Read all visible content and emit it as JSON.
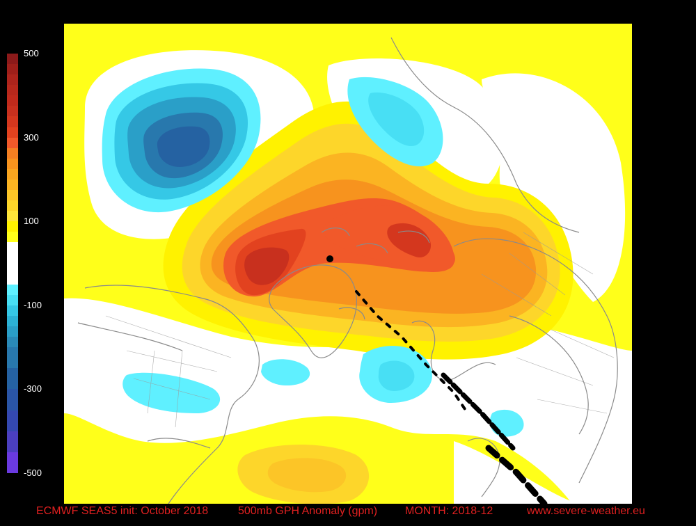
{
  "colors": {
    "background": "#000000",
    "land_outline": "#8a8a8a",
    "neutral": "#ffffff",
    "caption": "#e02020"
  },
  "colorbar": {
    "labels": [
      "500",
      "300",
      "100",
      "-100",
      "-300",
      "-500"
    ],
    "range": [
      -500,
      500
    ],
    "bands": [
      {
        "from": 475,
        "to": 500,
        "color": "#8c1a1a"
      },
      {
        "from": 450,
        "to": 475,
        "color": "#9e1f1a"
      },
      {
        "from": 425,
        "to": 450,
        "color": "#ad241c"
      },
      {
        "from": 400,
        "to": 425,
        "color": "#b7281c"
      },
      {
        "from": 375,
        "to": 400,
        "color": "#c02a1c"
      },
      {
        "from": 350,
        "to": 375,
        "color": "#c8301e"
      },
      {
        "from": 325,
        "to": 350,
        "color": "#d4371e"
      },
      {
        "from": 300,
        "to": 325,
        "color": "#e2421f"
      },
      {
        "from": 275,
        "to": 300,
        "color": "#f1592a"
      },
      {
        "from": 250,
        "to": 275,
        "color": "#f47f22"
      },
      {
        "from": 225,
        "to": 250,
        "color": "#f7931e"
      },
      {
        "from": 200,
        "to": 225,
        "color": "#f9a51f"
      },
      {
        "from": 175,
        "to": 200,
        "color": "#fbb422"
      },
      {
        "from": 150,
        "to": 175,
        "color": "#fcc527"
      },
      {
        "from": 125,
        "to": 150,
        "color": "#fdd62a"
      },
      {
        "from": 100,
        "to": 125,
        "color": "#fee53a"
      },
      {
        "from": 75,
        "to": 100,
        "color": "#fff200"
      },
      {
        "from": 50,
        "to": 75,
        "color": "#ffff1a"
      },
      {
        "from": -50,
        "to": 50,
        "color": "#ffffff"
      },
      {
        "from": -75,
        "to": -50,
        "color": "#5ff0ff"
      },
      {
        "from": -100,
        "to": -75,
        "color": "#48dff4"
      },
      {
        "from": -125,
        "to": -100,
        "color": "#35c8e6"
      },
      {
        "from": -150,
        "to": -125,
        "color": "#2cb2d6"
      },
      {
        "from": -175,
        "to": -150,
        "color": "#2a9fc8"
      },
      {
        "from": -200,
        "to": -175,
        "color": "#2a8ab8"
      },
      {
        "from": -250,
        "to": -200,
        "color": "#2878ad"
      },
      {
        "from": -300,
        "to": -250,
        "color": "#2562a2"
      },
      {
        "from": -350,
        "to": -300,
        "color": "#2a55a6"
      },
      {
        "from": -400,
        "to": -350,
        "color": "#3448b0"
      },
      {
        "from": -450,
        "to": -400,
        "color": "#4b3fbf"
      },
      {
        "from": -500,
        "to": -450,
        "color": "#6a3ae0"
      }
    ]
  },
  "caption": {
    "model": "ECMWF SEAS5 init: October 2018",
    "field": "500mb GPH Anomaly (gpm)",
    "month": "MONTH: 2018-12",
    "site": "www.severe-weather.eu"
  }
}
